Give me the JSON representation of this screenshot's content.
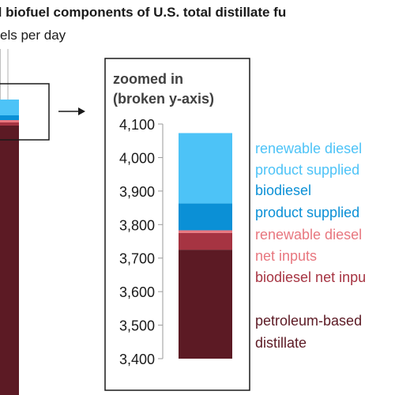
{
  "title": "d biofuel components of U.S. total distillate fu",
  "subtitle": "els per day",
  "colors": {
    "renewable_diesel_product_supplied": "#4dc3f7",
    "biodiesel_product_supplied": "#0b90d6",
    "renewable_diesel_net_inputs": "#e8777f",
    "biodiesel_net_inputs": "#a63442",
    "petroleum_based_distillate": "#5c1a24"
  },
  "chart_data": {
    "type": "bar",
    "stacked": true,
    "broken_y_axis": true,
    "inset_label": [
      "zoomed in",
      "(broken y-axis)"
    ],
    "ylim": [
      3400,
      4100
    ],
    "yticks": [
      "4,100",
      "4,000",
      "3,900",
      "3,800",
      "3,700",
      "3,600",
      "3,500",
      "3,400"
    ],
    "ytick_values": [
      4100,
      4000,
      3900,
      3800,
      3700,
      3600,
      3500,
      3400
    ],
    "series": [
      {
        "name": "petroleum-based distillate",
        "legend_lines": [
          "petroleum-based",
          "distillate"
        ],
        "value": 3725,
        "color_key": "petroleum_based_distillate"
      },
      {
        "name": "biodiesel net inputs",
        "legend_lines": [
          "biodiesel net inpu"
        ],
        "value": 50,
        "color_key": "biodiesel_net_inputs"
      },
      {
        "name": "renewable diesel net inputs",
        "legend_lines": [
          "renewable diesel",
          "net inputs"
        ],
        "value": 8,
        "color_key": "renewable_diesel_net_inputs"
      },
      {
        "name": "biodiesel product supplied",
        "legend_lines": [
          "biodiesel",
          "product supplied"
        ],
        "value": 80,
        "color_key": "biodiesel_product_supplied"
      },
      {
        "name": "renewable diesel product supplied",
        "legend_lines": [
          "renewable diesel",
          "product supplied"
        ],
        "value": 210,
        "color_key": "renewable_diesel_product_supplied"
      }
    ]
  }
}
